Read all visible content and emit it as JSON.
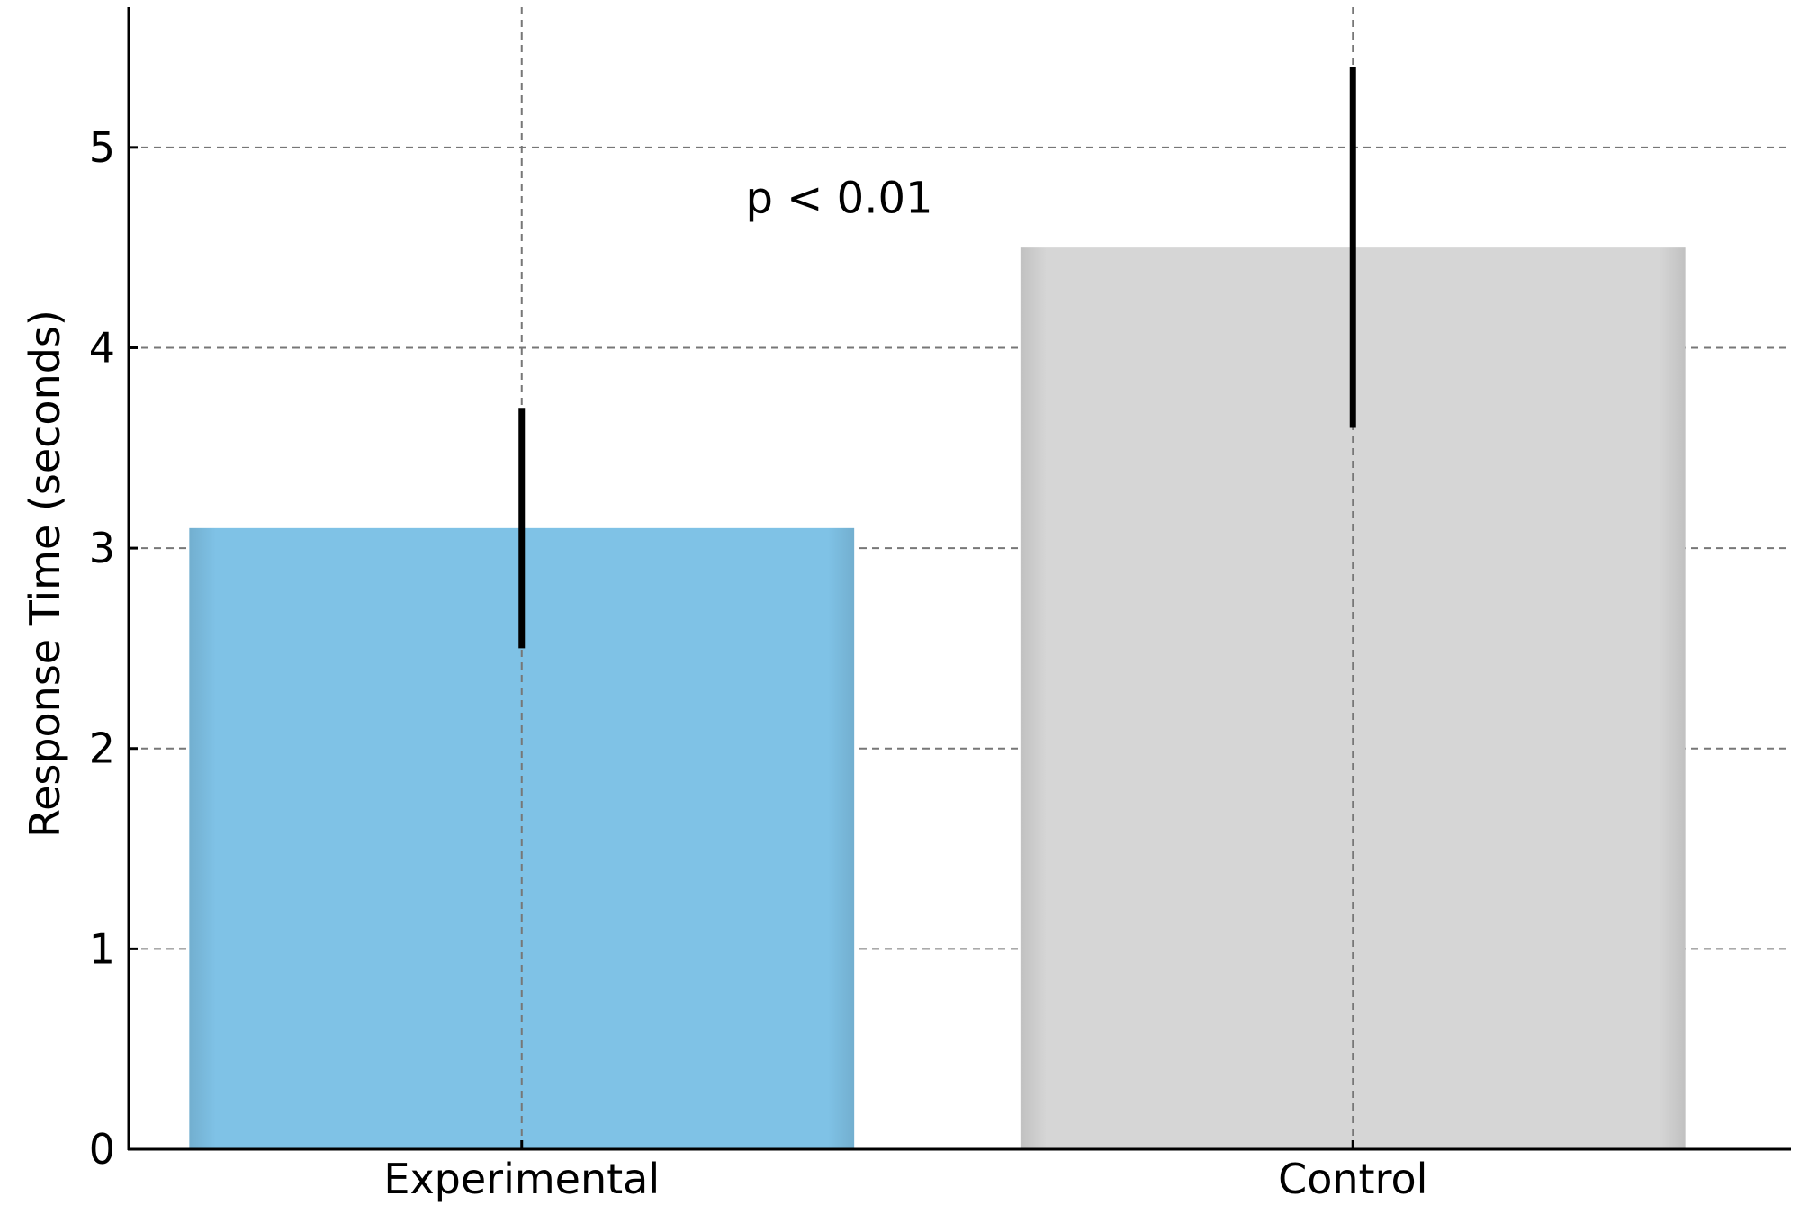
{
  "chart_data": {
    "type": "bar",
    "title": "",
    "xlabel": "",
    "ylabel": "Response Time (seconds)",
    "categories": [
      "Experimental",
      "Control"
    ],
    "values": [
      3.1,
      4.5
    ],
    "error_low": [
      2.5,
      3.6
    ],
    "error_high": [
      3.7,
      5.4
    ],
    "bar_colors": [
      "#7fc2e6",
      "#d6d6d6"
    ],
    "ylim": [
      0,
      5.7
    ],
    "yticks": [
      "0",
      "1",
      "2",
      "3",
      "4",
      "5"
    ],
    "grid": true,
    "annotation": {
      "text": "p < 0.01",
      "x_position": 0.5,
      "y": 4.75
    }
  }
}
